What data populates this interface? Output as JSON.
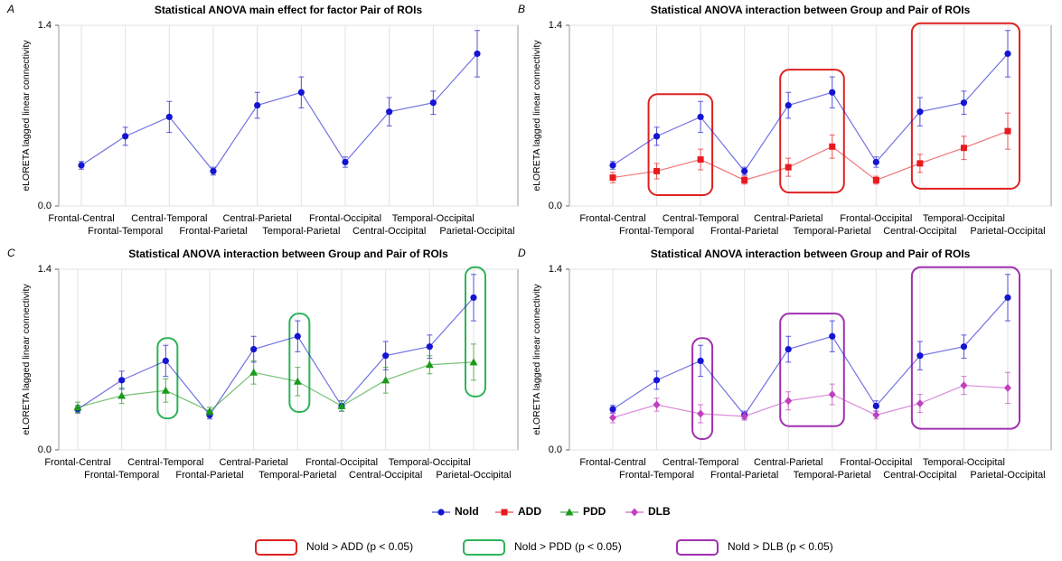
{
  "chart_data": [
    {
      "type": "line",
      "label": "A",
      "title": "Statistical ANOVA main effect for factor Pair of ROIs",
      "y_label": "eLORETA lagged linear connectivity",
      "categories": [
        "Frontal-Central",
        "Frontal-Temporal",
        "Central-Temporal",
        "Frontal-Parietal",
        "Central-Parietal",
        "Temporal-Parietal",
        "Frontal-Occipital",
        "Central-Occipital",
        "Temporal-Occipital",
        "Parietal-Occipital"
      ],
      "ylim": [
        0,
        1.4
      ],
      "yticks": [
        {
          "value": 0,
          "label": "0.0"
        },
        {
          "value": 1.4,
          "label": "1.4"
        }
      ],
      "grid": true,
      "series": [
        {
          "name": "Nold",
          "color": "#1414d2",
          "marker": "circle",
          "values": [
            0.315,
            0.54,
            0.69,
            0.27,
            0.78,
            0.88,
            0.34,
            0.73,
            0.8,
            1.18
          ],
          "errors": [
            0.03,
            0.07,
            0.12,
            0.03,
            0.1,
            0.12,
            0.04,
            0.11,
            0.09,
            0.18
          ]
        }
      ]
    },
    {
      "type": "line",
      "label": "B",
      "title": "Statistical ANOVA interaction between Group and Pair of ROIs",
      "y_label": "eLORETA lagged linear connectivity",
      "categories": [
        "Frontal-Central",
        "Frontal-Temporal",
        "Central-Temporal",
        "Frontal-Parietal",
        "Central-Parietal",
        "Temporal-Parietal",
        "Frontal-Occipital",
        "Central-Occipital",
        "Temporal-Occipital",
        "Parietal-Occipital"
      ],
      "ylim": [
        0,
        1.4
      ],
      "yticks": [
        {
          "value": 0,
          "label": "0.0"
        },
        {
          "value": 1.4,
          "label": "1.4"
        }
      ],
      "grid": true,
      "series": [
        {
          "name": "Nold",
          "color": "#1414d2",
          "marker": "circle",
          "values": [
            0.315,
            0.54,
            0.69,
            0.27,
            0.78,
            0.88,
            0.34,
            0.73,
            0.8,
            1.18
          ],
          "errors": [
            0.03,
            0.07,
            0.12,
            0.03,
            0.1,
            0.12,
            0.04,
            0.11,
            0.09,
            0.18
          ]
        },
        {
          "name": "ADD",
          "color": "#e81a1f",
          "marker": "square",
          "values": [
            0.22,
            0.27,
            0.36,
            0.2,
            0.3,
            0.46,
            0.2,
            0.33,
            0.45,
            0.58
          ],
          "errors": [
            0.04,
            0.06,
            0.08,
            0.03,
            0.07,
            0.09,
            0.03,
            0.07,
            0.09,
            0.14
          ]
        }
      ],
      "highlights": {
        "label": "Nold > ADD (p < 0.05)",
        "color": "#e02020",
        "spans": [
          [
            "Frontal-Temporal",
            "Central-Temporal"
          ],
          [
            "Central-Parietal",
            "Temporal-Parietal"
          ],
          [
            "Central-Occipital",
            "Parietal-Occipital"
          ]
        ]
      }
    },
    {
      "type": "line",
      "label": "C",
      "title": "Statistical ANOVA interaction between Group and Pair of ROIs",
      "y_label": "eLORETA lagged linear connectivity",
      "categories": [
        "Frontal-Central",
        "Frontal-Temporal",
        "Central-Temporal",
        "Frontal-Parietal",
        "Central-Parietal",
        "Temporal-Parietal",
        "Frontal-Occipital",
        "Central-Occipital",
        "Temporal-Occipital",
        "Parietal-Occipital"
      ],
      "ylim": [
        0,
        1.4
      ],
      "yticks": [
        {
          "value": 0,
          "label": "0.0"
        },
        {
          "value": 1.4,
          "label": "1.4"
        }
      ],
      "grid": true,
      "series": [
        {
          "name": "Nold",
          "color": "#1414d2",
          "marker": "circle",
          "values": [
            0.315,
            0.54,
            0.69,
            0.27,
            0.78,
            0.88,
            0.34,
            0.73,
            0.8,
            1.18
          ],
          "errors": [
            0.03,
            0.07,
            0.12,
            0.03,
            0.1,
            0.12,
            0.04,
            0.11,
            0.09,
            0.18
          ]
        },
        {
          "name": "PDD",
          "color": "#1a9a1a",
          "marker": "triangle",
          "values": [
            0.33,
            0.42,
            0.46,
            0.3,
            0.6,
            0.53,
            0.34,
            0.54,
            0.66,
            0.68
          ],
          "errors": [
            0.04,
            0.06,
            0.09,
            0.03,
            0.09,
            0.11,
            0.04,
            0.1,
            0.07,
            0.14
          ]
        }
      ],
      "highlights": {
        "label": "Nold > PDD (p < 0.05)",
        "color": "#2db35a",
        "spans": [
          [
            "Central-Temporal",
            "Central-Temporal"
          ],
          [
            "Temporal-Parietal",
            "Temporal-Parietal"
          ],
          [
            "Parietal-Occipital",
            "Parietal-Occipital"
          ]
        ]
      }
    },
    {
      "type": "line",
      "label": "D",
      "title": "Statistical ANOVA interaction between Group and Pair of ROIs",
      "y_label": "eLORETA lagged linear connectivity",
      "categories": [
        "Frontal-Central",
        "Frontal-Temporal",
        "Central-Temporal",
        "Frontal-Parietal",
        "Central-Parietal",
        "Temporal-Parietal",
        "Frontal-Occipital",
        "Central-Occipital",
        "Temporal-Occipital",
        "Parietal-Occipital"
      ],
      "ylim": [
        0,
        1.4
      ],
      "yticks": [
        {
          "value": 0,
          "label": "0.0"
        },
        {
          "value": 1.4,
          "label": "1.4"
        }
      ],
      "grid": true,
      "series": [
        {
          "name": "Nold",
          "color": "#1414d2",
          "marker": "circle",
          "values": [
            0.315,
            0.54,
            0.69,
            0.27,
            0.78,
            0.88,
            0.34,
            0.73,
            0.8,
            1.18
          ],
          "errors": [
            0.03,
            0.07,
            0.12,
            0.03,
            0.1,
            0.12,
            0.04,
            0.11,
            0.09,
            0.18
          ]
        },
        {
          "name": "DLB",
          "color": "#c040c0",
          "marker": "diamond",
          "values": [
            0.25,
            0.35,
            0.28,
            0.26,
            0.38,
            0.43,
            0.27,
            0.36,
            0.5,
            0.48
          ],
          "errors": [
            0.04,
            0.05,
            0.07,
            0.03,
            0.07,
            0.08,
            0.03,
            0.07,
            0.07,
            0.12
          ]
        }
      ],
      "highlights": {
        "label": "Nold > DLB (p < 0.05)",
        "color": "#a030b0",
        "spans": [
          [
            "Central-Temporal",
            "Central-Temporal"
          ],
          [
            "Central-Parietal",
            "Temporal-Parietal"
          ],
          [
            "Central-Occipital",
            "Parietal-Occipital"
          ]
        ]
      }
    }
  ]
}
